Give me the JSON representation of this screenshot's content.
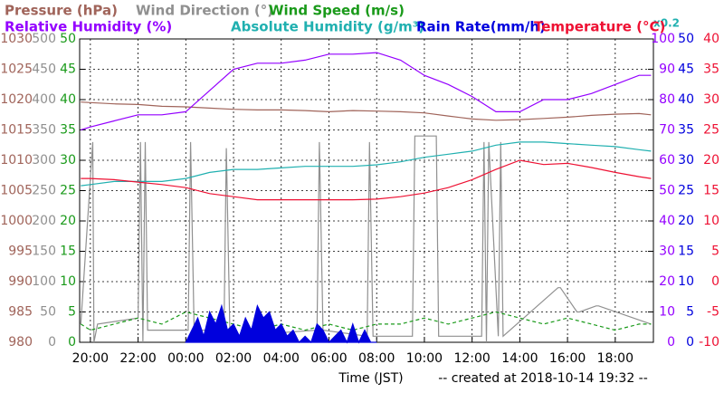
{
  "chart_data": {
    "type": "line",
    "xlabel": "Time (JST)",
    "footer": "-- created at 2018-10-14 19:32 --",
    "xlim": [
      -0.45,
      23.6
    ],
    "xticks": [
      {
        "value": 0,
        "label": "20:00"
      },
      {
        "value": 2,
        "label": "22:00"
      },
      {
        "value": 4,
        "label": "00:00"
      },
      {
        "value": 6,
        "label": "02:00"
      },
      {
        "value": 8,
        "label": "04:00"
      },
      {
        "value": 10,
        "label": "06:00"
      },
      {
        "value": 12,
        "label": "08:00"
      },
      {
        "value": 14,
        "label": "10:00"
      },
      {
        "value": 16,
        "label": "12:00"
      },
      {
        "value": 18,
        "label": "14:00"
      },
      {
        "value": 20,
        "label": "16:00"
      },
      {
        "value": 22,
        "label": "18:00"
      }
    ],
    "grid": true,
    "axes": [
      {
        "color": "#a0645a",
        "lim": [
          980,
          1030
        ],
        "ticks": [
          980,
          985,
          990,
          995,
          1000,
          1005,
          1010,
          1015,
          1020,
          1025,
          1030
        ]
      },
      {
        "color": "#909090",
        "lim": [
          0,
          500
        ],
        "ticks": [
          0,
          50,
          100,
          150,
          200,
          250,
          300,
          350,
          400,
          450,
          500
        ]
      },
      {
        "color": "#1a9a1a",
        "lim": [
          0,
          50
        ],
        "ticks": [
          0,
          5,
          10,
          15,
          20,
          25,
          30,
          35,
          40,
          45,
          50
        ]
      },
      {
        "color": "#9400ff",
        "lim": [
          0,
          100
        ],
        "ticks": [
          0,
          10,
          20,
          30,
          40,
          50,
          60,
          70,
          80,
          90,
          100
        ]
      },
      {
        "color": "#0000dd",
        "lim": [
          0,
          50
        ],
        "ticks": [
          0,
          5,
          10,
          15,
          20,
          25,
          30,
          35,
          40,
          45,
          50
        ]
      },
      {
        "color": "#ee1133",
        "lim": [
          -10,
          40
        ],
        "ticks": [
          -10,
          -5,
          0,
          5,
          10,
          15,
          20,
          25,
          30,
          35,
          40
        ]
      }
    ],
    "x": [
      -0.4,
      0,
      1,
      2,
      3,
      4,
      5,
      6,
      7,
      8,
      9,
      10,
      11,
      12,
      13,
      14,
      15,
      16,
      17,
      18,
      19,
      20,
      21,
      22,
      23,
      23.5
    ],
    "series": [
      {
        "name": "Pressure (hPa)",
        "color": "#a0645a",
        "axis": 0,
        "values": [
          1019.6,
          1019.5,
          1019.3,
          1019.2,
          1018.9,
          1018.8,
          1018.6,
          1018.4,
          1018.3,
          1018.3,
          1018.2,
          1018.0,
          1018.2,
          1018.1,
          1018.0,
          1017.8,
          1017.3,
          1016.8,
          1016.6,
          1016.7,
          1016.9,
          1017.1,
          1017.4,
          1017.6,
          1017.7,
          1017.5
        ]
      },
      {
        "name": "Wind Direction (°)",
        "color": "#909090",
        "axis": 1,
        "x": [
          -0.4,
          0.1,
          0.15,
          0.3,
          2.0,
          2.1,
          2.2,
          2.3,
          2.4,
          4.1,
          4.2,
          4.35,
          5.6,
          5.7,
          5.85,
          9.5,
          9.6,
          9.75,
          11.6,
          11.7,
          11.85,
          13.5,
          13.6,
          14.5,
          14.6,
          16.4,
          16.5,
          16.6,
          16.7,
          17.1,
          17.2,
          17.3,
          19.6,
          19.7,
          20.4,
          20.5,
          21.2,
          21.3,
          23.5
        ],
        "values": [
          30,
          330,
          0,
          30,
          40,
          330,
          0,
          330,
          20,
          20,
          330,
          20,
          20,
          320,
          10,
          20,
          330,
          20,
          10,
          330,
          10,
          10,
          340,
          340,
          10,
          10,
          330,
          0,
          330,
          10,
          330,
          10,
          90,
          90,
          50,
          50,
          60,
          60,
          30
        ]
      },
      {
        "name": "Wind Speed (m/s)",
        "color": "#1a9a1a",
        "axis": 2,
        "dashed": true,
        "values": [
          3,
          2,
          3,
          4,
          3,
          5,
          4,
          3,
          2,
          3,
          2,
          3,
          2,
          3,
          3,
          4,
          3,
          4,
          5,
          4,
          3,
          4,
          3,
          2,
          3,
          3
        ]
      },
      {
        "name": "Relative Humidity (%)",
        "color": "#9400ff",
        "axis": 3,
        "values": [
          70,
          71,
          73,
          75,
          75,
          76,
          83,
          90,
          92,
          92,
          93,
          95,
          95,
          95.5,
          93,
          88,
          85,
          81,
          76,
          76,
          80,
          80,
          82,
          85,
          88,
          88
        ]
      },
      {
        "name": "Absolute Humidity (g/m³)",
        "color": "#20b0b0",
        "axis": 3,
        "scale_label": "x0.2",
        "values": [
          51.6,
          52,
          53,
          53,
          53,
          54,
          56,
          57,
          57,
          57.5,
          58,
          58,
          58,
          58.5,
          59.5,
          61,
          62,
          63,
          65,
          66,
          66,
          65.5,
          65,
          64.5,
          63.5,
          63
        ]
      },
      {
        "name": "Rain Rate(mm/h)",
        "color": "#0000dd",
        "axis": 4,
        "fill": true,
        "x": [
          4.0,
          4.25,
          4.5,
          4.75,
          5.0,
          5.25,
          5.5,
          5.75,
          6.0,
          6.25,
          6.5,
          6.75,
          7.0,
          7.25,
          7.5,
          7.75,
          8.0,
          8.25,
          8.5,
          8.75,
          9.0,
          9.25,
          9.5,
          9.75,
          10.0,
          10.25,
          10.5,
          10.75,
          11.0,
          11.25,
          11.5,
          11.75,
          12.0
        ],
        "values": [
          0,
          2,
          4,
          1,
          5,
          3,
          6,
          2,
          3,
          1,
          4,
          2,
          6,
          4,
          5,
          2,
          3,
          1,
          2,
          0,
          1,
          0,
          3,
          2,
          0,
          1,
          2,
          0,
          3,
          0,
          2,
          0,
          0
        ]
      },
      {
        "name": "Temperature (°C)",
        "color": "#ee1133",
        "axis": 5,
        "values": [
          17,
          17,
          16.8,
          16.4,
          16,
          15.5,
          14.5,
          14,
          13.5,
          13.5,
          13.5,
          13.5,
          13.5,
          13.6,
          14,
          14.6,
          15.5,
          16.8,
          18.5,
          20,
          19.3,
          19.5,
          18.8,
          18,
          17.3,
          17
        ]
      }
    ]
  }
}
